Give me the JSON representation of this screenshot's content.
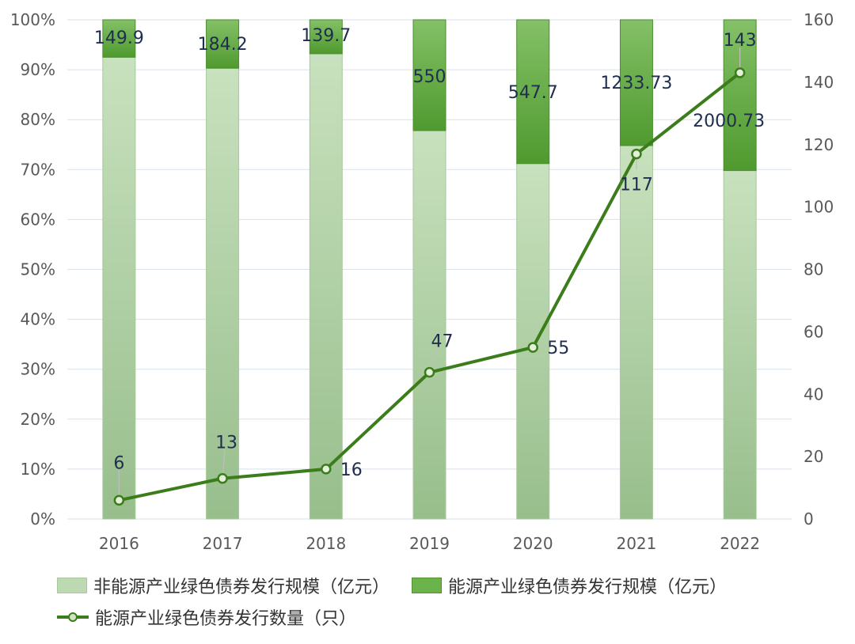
{
  "chart_data": {
    "type": "bar",
    "stacked": "percent",
    "categories": [
      "2016",
      "2017",
      "2018",
      "2019",
      "2020",
      "2021",
      "2022"
    ],
    "y_left": {
      "range": [
        0,
        100
      ],
      "ticks": [
        "0%",
        "10%",
        "20%",
        "30%",
        "40%",
        "50%",
        "60%",
        "70%",
        "80%",
        "90%",
        "100%"
      ]
    },
    "y_right": {
      "range": [
        0,
        160
      ],
      "ticks": [
        "0",
        "20",
        "40",
        "60",
        "80",
        "100",
        "120",
        "140",
        "160"
      ]
    },
    "series": [
      {
        "name": "非能源产业绿色债券发行规模（亿元）",
        "kind": "bar",
        "share_percent": [
          92.5,
          90.3,
          93.2,
          77.8,
          71.2,
          74.8,
          69.8
        ]
      },
      {
        "name": "能源产业绿色债券发行规模（亿元）",
        "kind": "bar",
        "values": [
          149.9,
          184.2,
          139.7,
          550,
          547.7,
          1233.73,
          2000.73
        ],
        "labels": [
          "149.9",
          "184.2",
          "139.7",
          "550",
          "547.7",
          "1233.73",
          "2000.73"
        ],
        "share_percent": [
          7.5,
          9.7,
          6.8,
          22.2,
          28.8,
          25.2,
          30.2
        ]
      },
      {
        "name": "能源产业绿色债券发行数量（只）",
        "kind": "line",
        "axis": "right",
        "values": [
          6,
          13,
          16,
          47,
          55,
          117,
          143
        ],
        "labels": [
          "6",
          "13",
          "16",
          "47",
          "55",
          "117",
          "143"
        ]
      }
    ],
    "colors": {
      "bar_light": "#bcd9b2",
      "bar_dark": "#6db34c",
      "line": "#3b7d1b",
      "grid": "#d9e1ea"
    },
    "grid": true,
    "legend_position": "bottom"
  },
  "legend": {
    "item1": "非能源产业绿色债券发行规模（亿元）",
    "item2": "能源产业绿色债券发行规模（亿元）",
    "item3": "能源产业绿色债券发行数量（只）"
  }
}
